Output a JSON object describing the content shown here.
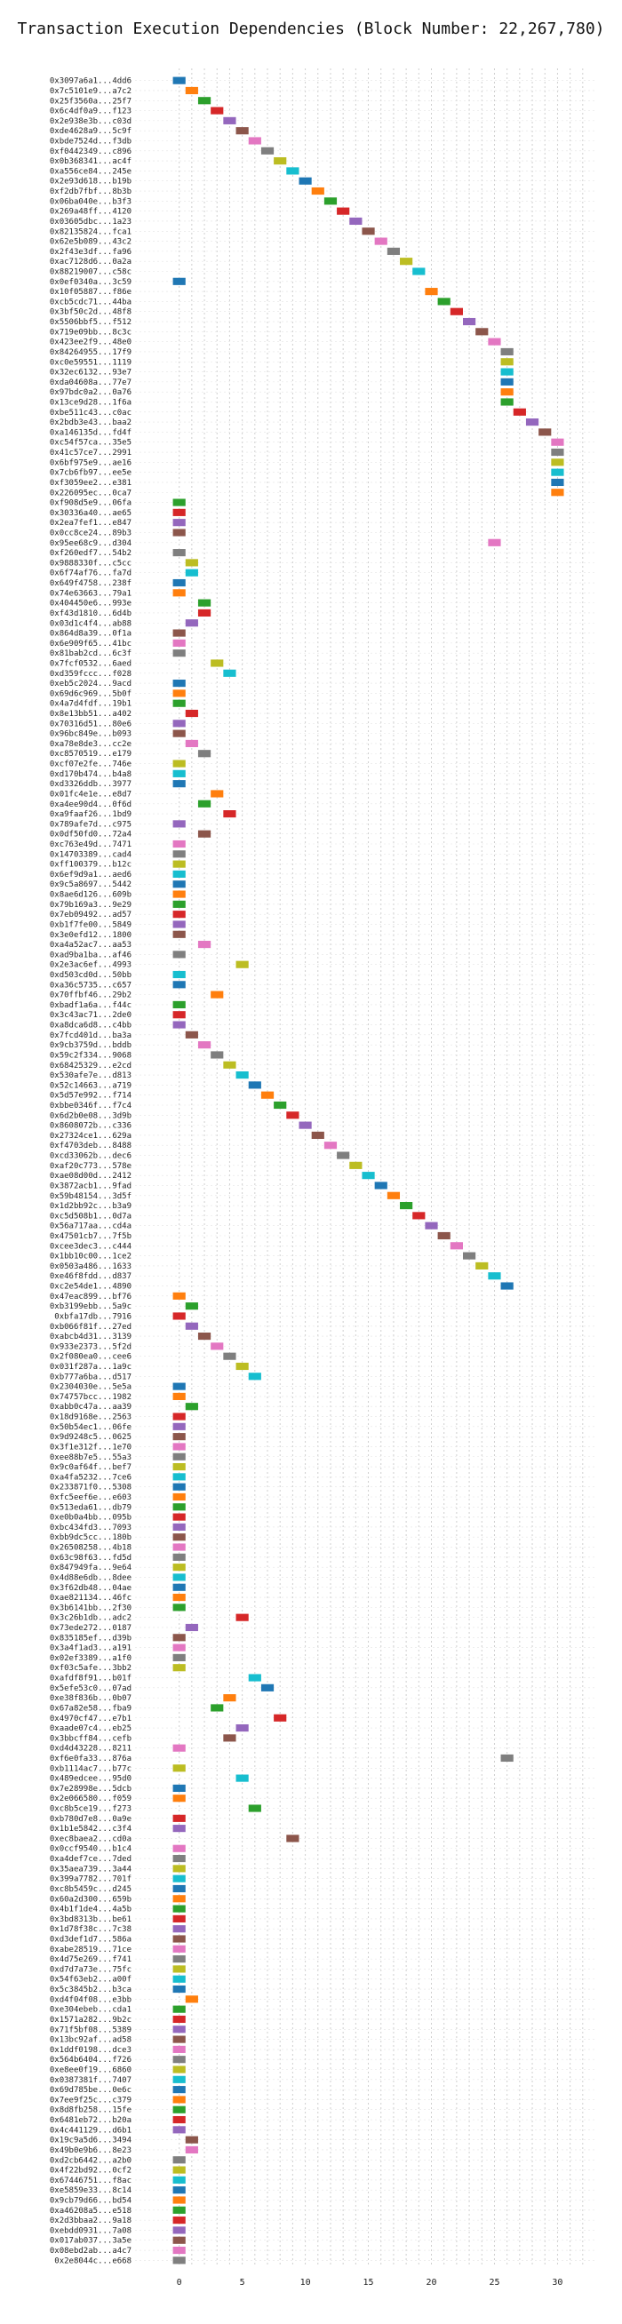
{
  "chart_data": {
    "type": "gantt",
    "title": "Transaction Execution Dependencies (Block Number: 22,267,780)",
    "xlabel": "",
    "ylabel": "",
    "xlim": [
      -3.5,
      33
    ],
    "xticks": [
      0,
      5,
      10,
      15,
      20,
      25,
      30
    ],
    "grid": true,
    "legend": "none",
    "palette": [
      "#1f77b4",
      "#ff7f0e",
      "#2ca02c",
      "#d62728",
      "#9467bd",
      "#8c564b",
      "#e377c2",
      "#7f7f7f",
      "#bcbd22",
      "#17becf"
    ],
    "transactions": [
      {
        "tx": "0x3097a6a1...4dd6",
        "start": 0
      },
      {
        "tx": "0x7c5101e9...a7c2",
        "start": 1
      },
      {
        "tx": "0x25f3560a...25f7",
        "start": 2
      },
      {
        "tx": "0x6c4df0a9...f123",
        "start": 3
      },
      {
        "tx": "0x2e938e3b...c03d",
        "start": 4
      },
      {
        "tx": "0xde4628a9...5c9f",
        "start": 5
      },
      {
        "tx": "0xbde7524d...f3db",
        "start": 6
      },
      {
        "tx": "0xf0442349...c896",
        "start": 7
      },
      {
        "tx": "0x0b368341...ac4f",
        "start": 8
      },
      {
        "tx": "0xa556ce84...245e",
        "start": 9
      },
      {
        "tx": "0x2e93d618...b19b",
        "start": 10
      },
      {
        "tx": "0xf2db7fbf...8b3b",
        "start": 11
      },
      {
        "tx": "0x06ba040e...b3f3",
        "start": 12
      },
      {
        "tx": "0x269a48ff...4120",
        "start": 13
      },
      {
        "tx": "0x03605dbc...1a23",
        "start": 14
      },
      {
        "tx": "0x82135824...fca1",
        "start": 15
      },
      {
        "tx": "0x62e5b089...43c2",
        "start": 16
      },
      {
        "tx": "0x2f43e3df...fa96",
        "start": 17
      },
      {
        "tx": "0xac7128d6...0a2a",
        "start": 18
      },
      {
        "tx": "0x88219007...c58c",
        "start": 19
      },
      {
        "tx": "0x0ef0340a...3c59",
        "start": 0
      },
      {
        "tx": "0x10f05887...f86e",
        "start": 20
      },
      {
        "tx": "0xcb5cdc71...44ba",
        "start": 21
      },
      {
        "tx": "0x3bf50c2d...48f8",
        "start": 22
      },
      {
        "tx": "0x5506bbf5...f512",
        "start": 23
      },
      {
        "tx": "0x719e09bb...8c3c",
        "start": 24
      },
      {
        "tx": "0x423ee2f9...48e0",
        "start": 25
      },
      {
        "tx": "0x84264955...17f9",
        "start": 26
      },
      {
        "tx": "0xc0e59551...1119",
        "start": 26
      },
      {
        "tx": "0x32ec6132...93e7",
        "start": 26
      },
      {
        "tx": "0xda04608a...77e7",
        "start": 26
      },
      {
        "tx": "0x97bdc0a2...0a76",
        "start": 26
      },
      {
        "tx": "0x13ce9d28...1f6a",
        "start": 26
      },
      {
        "tx": "0xbe511c43...c0ac",
        "start": 27
      },
      {
        "tx": "0x2bdb3e43...baa2",
        "start": 28
      },
      {
        "tx": "0xa146135d...fd4f",
        "start": 29
      },
      {
        "tx": "0xc54f57ca...35e5",
        "start": 30
      },
      {
        "tx": "0x41c57ce7...2991",
        "start": 30
      },
      {
        "tx": "0x6bf975e9...ae16",
        "start": 30
      },
      {
        "tx": "0x7cb6fb97...ee5e",
        "start": 30
      },
      {
        "tx": "0xf3059ee2...e381",
        "start": 30
      },
      {
        "tx": "0x226095ec...0ca7",
        "start": 30
      },
      {
        "tx": "0xf908d5e9...06fa",
        "start": 0
      },
      {
        "tx": "0x30336a40...ae65",
        "start": 0
      },
      {
        "tx": "0x2ea7fef1...e847",
        "start": 0
      },
      {
        "tx": "0x0cc8ce24...89b3",
        "start": 0
      },
      {
        "tx": "0x95ee68c9...d304",
        "start": 25
      },
      {
        "tx": "0xf260edf7...54b2",
        "start": 0
      },
      {
        "tx": "0x9888330f...c5cc",
        "start": 1
      },
      {
        "tx": "0x6f74af76...fa7d",
        "start": 1
      },
      {
        "tx": "0x649f4758...238f",
        "start": 0
      },
      {
        "tx": "0x74e63663...79a1",
        "start": 0
      },
      {
        "tx": "0x404450e6...993e",
        "start": 2
      },
      {
        "tx": "0xf43d1810...6d4b",
        "start": 2
      },
      {
        "tx": "0x03d1c4f4...ab88",
        "start": 1
      },
      {
        "tx": "0x864d8a39...0f1a",
        "start": 0
      },
      {
        "tx": "0x6e909f65...41bc",
        "start": 0
      },
      {
        "tx": "0x81bab2cd...6c3f",
        "start": 0
      },
      {
        "tx": "0x7fcf0532...6aed",
        "start": 3
      },
      {
        "tx": "0xd359fccc...f028",
        "start": 4
      },
      {
        "tx": "0xeb5c2024...9acd",
        "start": 0
      },
      {
        "tx": "0x69d6c969...5b0f",
        "start": 0
      },
      {
        "tx": "0x4a7d4fdf...19b1",
        "start": 0
      },
      {
        "tx": "0x8e13bb51...a402",
        "start": 1
      },
      {
        "tx": "0x70316d51...80e6",
        "start": 0
      },
      {
        "tx": "0x96bc849e...b093",
        "start": 0
      },
      {
        "tx": "0xa78e8de3...cc2e",
        "start": 1
      },
      {
        "tx": "0xc8570519...e179",
        "start": 2
      },
      {
        "tx": "0xcf07e2fe...746e",
        "start": 0
      },
      {
        "tx": "0xd170b474...b4a8",
        "start": 0
      },
      {
        "tx": "0xd3326ddb...3977",
        "start": 0
      },
      {
        "tx": "0x01fc4e1e...e8d7",
        "start": 3
      },
      {
        "tx": "0xa4ee90d4...0f6d",
        "start": 2
      },
      {
        "tx": "0xa9faaf26...1bd9",
        "start": 4
      },
      {
        "tx": "0x789afe7d...c975",
        "start": 0
      },
      {
        "tx": "0x0df50fd0...72a4",
        "start": 2
      },
      {
        "tx": "0xc763e49d...7471",
        "start": 0
      },
      {
        "tx": "0x14703389...cad4",
        "start": 0
      },
      {
        "tx": "0xff100379...b12c",
        "start": 0
      },
      {
        "tx": "0x6ef9d9a1...aed6",
        "start": 0
      },
      {
        "tx": "0x9c5a8697...5442",
        "start": 0
      },
      {
        "tx": "0x8ae6d126...609b",
        "start": 0
      },
      {
        "tx": "0x79b169a3...9e29",
        "start": 0
      },
      {
        "tx": "0x7eb09492...ad57",
        "start": 0
      },
      {
        "tx": "0xb1f7fe00...5849",
        "start": 0
      },
      {
        "tx": "0x3e0efd12...1800",
        "start": 0
      },
      {
        "tx": "0xa4a52ac7...aa53",
        "start": 2
      },
      {
        "tx": "0xad9ba1ba...af46",
        "start": 0
      },
      {
        "tx": "0x2e3ac6ef...4993",
        "start": 5
      },
      {
        "tx": "0xd503cd0d...50bb",
        "start": 0
      },
      {
        "tx": "0xa36c5735...c657",
        "start": 0
      },
      {
        "tx": "0x70ffbf46...29b2",
        "start": 3
      },
      {
        "tx": "0xbadf1a6a...f44c",
        "start": 0
      },
      {
        "tx": "0x3c43ac71...2de0",
        "start": 0
      },
      {
        "tx": "0xa8dca6d8...c4bb",
        "start": 0
      },
      {
        "tx": "0x7fcd401d...ba3a",
        "start": 1
      },
      {
        "tx": "0x9cb3759d...bddb",
        "start": 2
      },
      {
        "tx": "0x59c2f334...9068",
        "start": 3
      },
      {
        "tx": "0x68425329...e2cd",
        "start": 4
      },
      {
        "tx": "0x530afe7e...d813",
        "start": 5
      },
      {
        "tx": "0x52c14663...a719",
        "start": 6
      },
      {
        "tx": "0x5d57e992...f714",
        "start": 7
      },
      {
        "tx": "0xbbe0346f...f7c4",
        "start": 8
      },
      {
        "tx": "0x6d2b0e08...3d9b",
        "start": 9
      },
      {
        "tx": "0x8608072b...c336",
        "start": 10
      },
      {
        "tx": "0x27324ce1...629a",
        "start": 11
      },
      {
        "tx": "0xf4703deb...8488",
        "start": 12
      },
      {
        "tx": "0xcd33062b...dec6",
        "start": 13
      },
      {
        "tx": "0xaf20c773...578e",
        "start": 14
      },
      {
        "tx": "0xae08d00d...2412",
        "start": 15
      },
      {
        "tx": "0x3872acb1...9fad",
        "start": 16
      },
      {
        "tx": "0x59b48154...3d5f",
        "start": 17
      },
      {
        "tx": "0x1d2bb92c...b3a9",
        "start": 18
      },
      {
        "tx": "0xc5d508b1...0d7a",
        "start": 19
      },
      {
        "tx": "0x56a717aa...cd4a",
        "start": 20
      },
      {
        "tx": "0x47501cb7...7f5b",
        "start": 21
      },
      {
        "tx": "0xcee3dec3...c444",
        "start": 22
      },
      {
        "tx": "0x1bb10c00...1ce2",
        "start": 23
      },
      {
        "tx": "0x0503a486...1633",
        "start": 24
      },
      {
        "tx": "0xe46f8fdd...d837",
        "start": 25
      },
      {
        "tx": "0xc2e54de1...4890",
        "start": 26
      },
      {
        "tx": "0x47eac899...bf76",
        "start": 0
      },
      {
        "tx": "0xb3199ebb...5a9c",
        "start": 1
      },
      {
        "tx": "0xbfa17db...7916",
        "start": 0
      },
      {
        "tx": "0xb066f81f...27ed",
        "start": 1
      },
      {
        "tx": "0xabcb4d31...3139",
        "start": 2
      },
      {
        "tx": "0x933e2373...5f2d",
        "start": 3
      },
      {
        "tx": "0x2f080ea0...cee6",
        "start": 4
      },
      {
        "tx": "0x031f287a...1a9c",
        "start": 5
      },
      {
        "tx": "0xb777a6ba...d517",
        "start": 6
      },
      {
        "tx": "0x2304030e...5e5a",
        "start": 0
      },
      {
        "tx": "0x74757bcc...1982",
        "start": 0
      },
      {
        "tx": "0xabb0c47a...aa39",
        "start": 1
      },
      {
        "tx": "0x18d9168e...2563",
        "start": 0
      },
      {
        "tx": "0x50b54ec1...06fe",
        "start": 0
      },
      {
        "tx": "0x9d9248c5...0625",
        "start": 0
      },
      {
        "tx": "0x3f1e312f...1e70",
        "start": 0
      },
      {
        "tx": "0xee88b7e5...55a3",
        "start": 0
      },
      {
        "tx": "0x9c0af64f...bef7",
        "start": 0
      },
      {
        "tx": "0xa4fa5232...7ce6",
        "start": 0
      },
      {
        "tx": "0x233871f0...5308",
        "start": 0
      },
      {
        "tx": "0xfc5eef6e...e603",
        "start": 0
      },
      {
        "tx": "0x513eda61...db79",
        "start": 0
      },
      {
        "tx": "0xe0b0a4bb...095b",
        "start": 0
      },
      {
        "tx": "0xbc434fd3...7093",
        "start": 0
      },
      {
        "tx": "0xbb9dc5cc...180b",
        "start": 0
      },
      {
        "tx": "0x26508258...4b18",
        "start": 0
      },
      {
        "tx": "0x63c98f63...fd5d",
        "start": 0
      },
      {
        "tx": "0x847949fa...9e64",
        "start": 0
      },
      {
        "tx": "0x4d88e6db...8dee",
        "start": 0
      },
      {
        "tx": "0x3f62db48...04ae",
        "start": 0
      },
      {
        "tx": "0xae821134...46fc",
        "start": 0
      },
      {
        "tx": "0x3b6141bb...2f30",
        "start": 0
      },
      {
        "tx": "0x3c26b1db...adc2",
        "start": 5
      },
      {
        "tx": "0x73ede272...0187",
        "start": 1
      },
      {
        "tx": "0x835185ef...d39b",
        "start": 0
      },
      {
        "tx": "0x3a4f1ad3...a191",
        "start": 0
      },
      {
        "tx": "0x02ef3389...a1f0",
        "start": 0
      },
      {
        "tx": "0xf03c5afe...3bb2",
        "start": 0
      },
      {
        "tx": "0xafdf8f91...b01f",
        "start": 6
      },
      {
        "tx": "0x5efe53c0...07ad",
        "start": 7
      },
      {
        "tx": "0xe38f836b...0b07",
        "start": 4
      },
      {
        "tx": "0x67a82e58...fba9",
        "start": 3
      },
      {
        "tx": "0x4970cf47...e7b1",
        "start": 8
      },
      {
        "tx": "0xaade07c4...eb25",
        "start": 5
      },
      {
        "tx": "0x3bbcff84...cefb",
        "start": 4
      },
      {
        "tx": "0xd4d43228...8211",
        "start": 0
      },
      {
        "tx": "0xf6e0fa33...876a",
        "start": 26
      },
      {
        "tx": "0xb1114ac7...b77c",
        "start": 0
      },
      {
        "tx": "0x489edcee...95d0",
        "start": 5
      },
      {
        "tx": "0x7e28998e...5dcb",
        "start": 0
      },
      {
        "tx": "0x2e066580...f059",
        "start": 0
      },
      {
        "tx": "0xc8b5ce19...f273",
        "start": 6
      },
      {
        "tx": "0xb780d7e8...0a9e",
        "start": 0
      },
      {
        "tx": "0x1b1e5842...c3f4",
        "start": 0
      },
      {
        "tx": "0xec8baea2...cd0a",
        "start": 9
      },
      {
        "tx": "0x0ccf9540...b1c4",
        "start": 0
      },
      {
        "tx": "0xa4def7ce...7ded",
        "start": 0
      },
      {
        "tx": "0x35aea739...3a44",
        "start": 0
      },
      {
        "tx": "0x399a7782...701f",
        "start": 0
      },
      {
        "tx": "0xc8b5459c...d245",
        "start": 0
      },
      {
        "tx": "0x60a2d300...659b",
        "start": 0
      },
      {
        "tx": "0x4b1f1de4...4a5b",
        "start": 0
      },
      {
        "tx": "0x3bd8313b...be61",
        "start": 0
      },
      {
        "tx": "0x1d78f38c...7c38",
        "start": 0
      },
      {
        "tx": "0xd3def1d7...586a",
        "start": 0
      },
      {
        "tx": "0xabe28519...71ce",
        "start": 0
      },
      {
        "tx": "0x4d75e269...f741",
        "start": 0
      },
      {
        "tx": "0xd7d7a73e...75fc",
        "start": 0
      },
      {
        "tx": "0x54f63eb2...a00f",
        "start": 0
      },
      {
        "tx": "0x5c3845b2...b3ca",
        "start": 0
      },
      {
        "tx": "0xd4f04f08...e3bb",
        "start": 1
      },
      {
        "tx": "0xe304ebeb...cda1",
        "start": 0
      },
      {
        "tx": "0x1571a282...9b2c",
        "start": 0
      },
      {
        "tx": "0x71f5bf08...5389",
        "start": 0
      },
      {
        "tx": "0x13bc92af...ad58",
        "start": 0
      },
      {
        "tx": "0x1ddf0198...dce3",
        "start": 0
      },
      {
        "tx": "0x564b6404...f726",
        "start": 0
      },
      {
        "tx": "0xe8ee0f19...6860",
        "start": 0
      },
      {
        "tx": "0x0387381f...7407",
        "start": 0
      },
      {
        "tx": "0x69d785be...0e6c",
        "start": 0
      },
      {
        "tx": "0x7ee9f25c...c379",
        "start": 0
      },
      {
        "tx": "0x8d8fb258...15fe",
        "start": 0
      },
      {
        "tx": "0x6481eb72...b20a",
        "start": 0
      },
      {
        "tx": "0x4c441129...d6b1",
        "start": 0
      },
      {
        "tx": "0x19c9a5d6...3494",
        "start": 1
      },
      {
        "tx": "0x49b0e9b6...8e23",
        "start": 1
      },
      {
        "tx": "0xd2cb6442...a2b0",
        "start": 0
      },
      {
        "tx": "0x4f22bd92...0cf2",
        "start": 0
      },
      {
        "tx": "0x67446751...f8ac",
        "start": 0
      },
      {
        "tx": "0xe5859e33...8c14",
        "start": 0
      },
      {
        "tx": "0x9cb79d66...bd54",
        "start": 0
      },
      {
        "tx": "0xa46208a5...e518",
        "start": 0
      },
      {
        "tx": "0x2d3bbaa2...9a18",
        "start": 0
      },
      {
        "tx": "0xebdd0931...7a08",
        "start": 0
      },
      {
        "tx": "0x017ab037...3a5e",
        "start": 0
      },
      {
        "tx": "0x08ebd2ab...a4c7",
        "start": 0
      },
      {
        "tx": "0x2e8044c...e668",
        "start": 0
      }
    ]
  }
}
